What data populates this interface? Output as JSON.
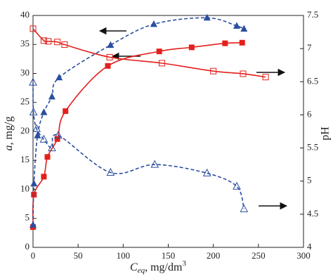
{
  "chart_data": {
    "type": "scatter",
    "xlabel": [
      "C",
      "eq",
      ", mg/dm",
      "3"
    ],
    "ylabel": [
      "a",
      ", mg/g"
    ],
    "y2label": "pH",
    "xlim": [
      0,
      300
    ],
    "xticks": [
      0,
      50,
      100,
      150,
      200,
      250,
      300
    ],
    "ylim": [
      0,
      40
    ],
    "yticks": [
      0,
      5,
      10,
      15,
      20,
      25,
      30,
      35,
      40
    ],
    "y2lim": [
      4,
      7.5
    ],
    "y2ticks": [
      4,
      4.5,
      5,
      5.5,
      6,
      6.5,
      7,
      7.5
    ],
    "series": [
      {
        "color": "#e3201b",
        "marker": "square",
        "filled": true,
        "line": "solid",
        "axis": "y",
        "x": [
          0,
          1,
          12,
          16,
          27,
          36,
          83,
          140,
          176,
          213,
          232
        ],
        "values": [
          3.5,
          9.1,
          12.2,
          15.6,
          18.7,
          23.5,
          31.3,
          33.8,
          34.5,
          35.2,
          35.3
        ]
      },
      {
        "color": "#2a4ea0",
        "marker": "triangle",
        "filled": true,
        "line": "dashed",
        "axis": "y",
        "x": [
          0,
          1,
          5,
          12,
          21,
          29,
          86,
          134,
          193,
          226,
          234
        ],
        "values": [
          3.9,
          11,
          19.3,
          23.3,
          26,
          29.3,
          34.9,
          38.5,
          39.6,
          38.2,
          37.7
        ]
      },
      {
        "color": "#e3201b",
        "marker": "square",
        "filled": false,
        "line": "solid",
        "axis": "y2",
        "x": [
          0,
          12,
          17,
          27,
          35,
          85,
          143,
          200,
          233,
          258
        ],
        "values": [
          7.3,
          7.12,
          7.11,
          7.1,
          7.06,
          6.87,
          6.78,
          6.66,
          6.62,
          6.57
        ]
      },
      {
        "color": "#2a4ea0",
        "marker": "triangle",
        "filled": false,
        "line": "dashed",
        "axis": "y2",
        "x": [
          0,
          0.5,
          4,
          12,
          21,
          28,
          86,
          135,
          193,
          226,
          234
        ],
        "values": [
          6.49,
          6.04,
          5.79,
          5.63,
          5.5,
          5.69,
          5.13,
          5.25,
          5.12,
          4.92,
          4.58
        ]
      }
    ]
  }
}
